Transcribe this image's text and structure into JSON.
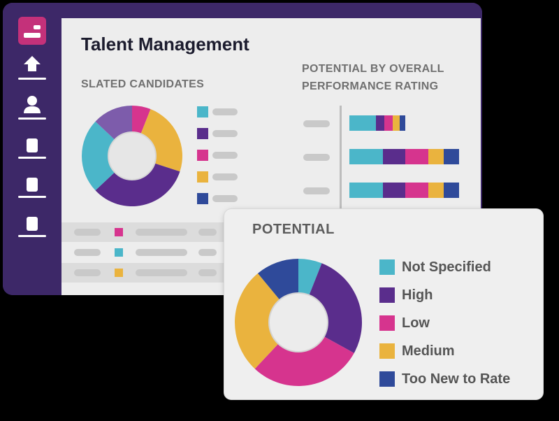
{
  "app": {
    "title": "Talent Management"
  },
  "colors": {
    "sidebar": "#3d2868",
    "teal": "#4bb6c9",
    "purple": "#5a2d8c",
    "magenta": "#d6348e",
    "amber": "#eab33e",
    "navy": "#2f4a9a",
    "lavender": "#7d5cab",
    "pill": "#c9c9c9",
    "active_nav": "#c4317a"
  },
  "sidebar": {
    "items": [
      {
        "icon": "dashboard-icon",
        "active": true
      },
      {
        "icon": "upload-icon"
      },
      {
        "icon": "person-icon"
      },
      {
        "icon": "document-icon"
      },
      {
        "icon": "document-icon"
      },
      {
        "icon": "document-icon"
      }
    ]
  },
  "slated": {
    "heading": "SLATED CANDIDATES",
    "donut": [
      {
        "color": "#d6348e",
        "value": 6
      },
      {
        "color": "#eab33e",
        "value": 24
      },
      {
        "color": "#5a2d8c",
        "value": 33
      },
      {
        "color": "#4bb6c9",
        "value": 24
      },
      {
        "color": "#7d5cab",
        "value": 13
      }
    ],
    "legend_colors": [
      "#4bb6c9",
      "#5a2d8c",
      "#d6348e",
      "#eab33e",
      "#2f4a9a"
    ]
  },
  "potential_by_rating": {
    "heading_line1": "POTENTIAL BY OVERALL",
    "heading_line2": "PERFORMANCE RATING",
    "bars": [
      {
        "segments": [
          {
            "color": "#4bb6c9",
            "value": 38
          },
          {
            "color": "#5a2d8c",
            "value": 12
          },
          {
            "color": "#d6348e",
            "value": 12
          },
          {
            "color": "#eab33e",
            "value": 10
          },
          {
            "color": "#2f4a9a",
            "value": 8
          }
        ]
      },
      {
        "segments": [
          {
            "color": "#4bb6c9",
            "value": 48
          },
          {
            "color": "#5a2d8c",
            "value": 32
          },
          {
            "color": "#d6348e",
            "value": 33
          },
          {
            "color": "#eab33e",
            "value": 22
          },
          {
            "color": "#2f4a9a",
            "value": 22
          }
        ]
      },
      {
        "segments": [
          {
            "color": "#4bb6c9",
            "value": 48
          },
          {
            "color": "#5a2d8c",
            "value": 32
          },
          {
            "color": "#d6348e",
            "value": 33
          },
          {
            "color": "#eab33e",
            "value": 22
          },
          {
            "color": "#2f4a9a",
            "value": 22
          }
        ]
      }
    ]
  },
  "table": {
    "rows": [
      {
        "marker_color": "#d6348e",
        "shaded": true
      },
      {
        "marker_color": "#4bb6c9",
        "shaded": false
      },
      {
        "marker_color": "#eab33e",
        "shaded": true
      }
    ]
  },
  "potential_popup": {
    "title": "POTENTIAL",
    "legend": [
      {
        "label": "Not Specified",
        "color": "#4bb6c9"
      },
      {
        "label": "High",
        "color": "#5a2d8c"
      },
      {
        "label": "Low",
        "color": "#d6348e"
      },
      {
        "label": "Medium",
        "color": "#eab33e"
      },
      {
        "label": "Too New to Rate",
        "color": "#2f4a9a"
      }
    ],
    "donut": [
      {
        "color": "#4bb6c9",
        "value": 6
      },
      {
        "color": "#5a2d8c",
        "value": 27
      },
      {
        "color": "#d6348e",
        "value": 29
      },
      {
        "color": "#eab33e",
        "value": 27
      },
      {
        "color": "#2f4a9a",
        "value": 11
      }
    ]
  }
}
